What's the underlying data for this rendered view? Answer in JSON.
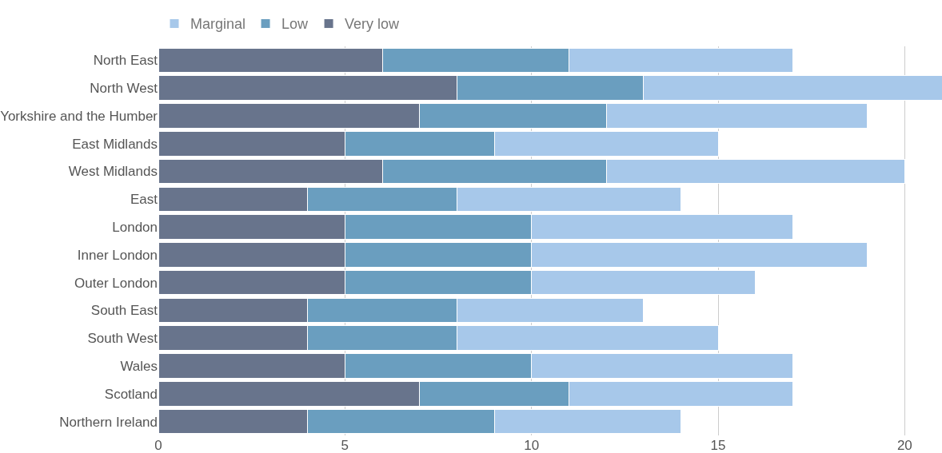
{
  "chart_data": {
    "type": "bar",
    "orientation": "horizontal",
    "stacked": true,
    "categories": [
      "North East",
      "North West",
      "Yorkshire and the Humber",
      "East Midlands",
      "West Midlands",
      "East",
      "London",
      "Inner London",
      "Outer London",
      "South East",
      "South West",
      "Wales",
      "Scotland",
      "Northern Ireland"
    ],
    "series": [
      {
        "name": "Very low",
        "color": "#68748c",
        "values": [
          6,
          8,
          7,
          5,
          6,
          4,
          5,
          5,
          5,
          4,
          4,
          5,
          7,
          4
        ]
      },
      {
        "name": "Low",
        "color": "#6a9ebf",
        "values": [
          5,
          5,
          5,
          4,
          6,
          4,
          5,
          5,
          5,
          4,
          4,
          5,
          4,
          5
        ]
      },
      {
        "name": "Marginal",
        "color": "#a7c8ea",
        "values": [
          6,
          8,
          7,
          6,
          8,
          6,
          7,
          9,
          6,
          5,
          7,
          7,
          6,
          5
        ]
      }
    ],
    "xlim": [
      0,
      21
    ],
    "xticks": [
      0,
      5,
      10,
      15,
      20
    ],
    "grid": "x",
    "legend": "top left"
  }
}
